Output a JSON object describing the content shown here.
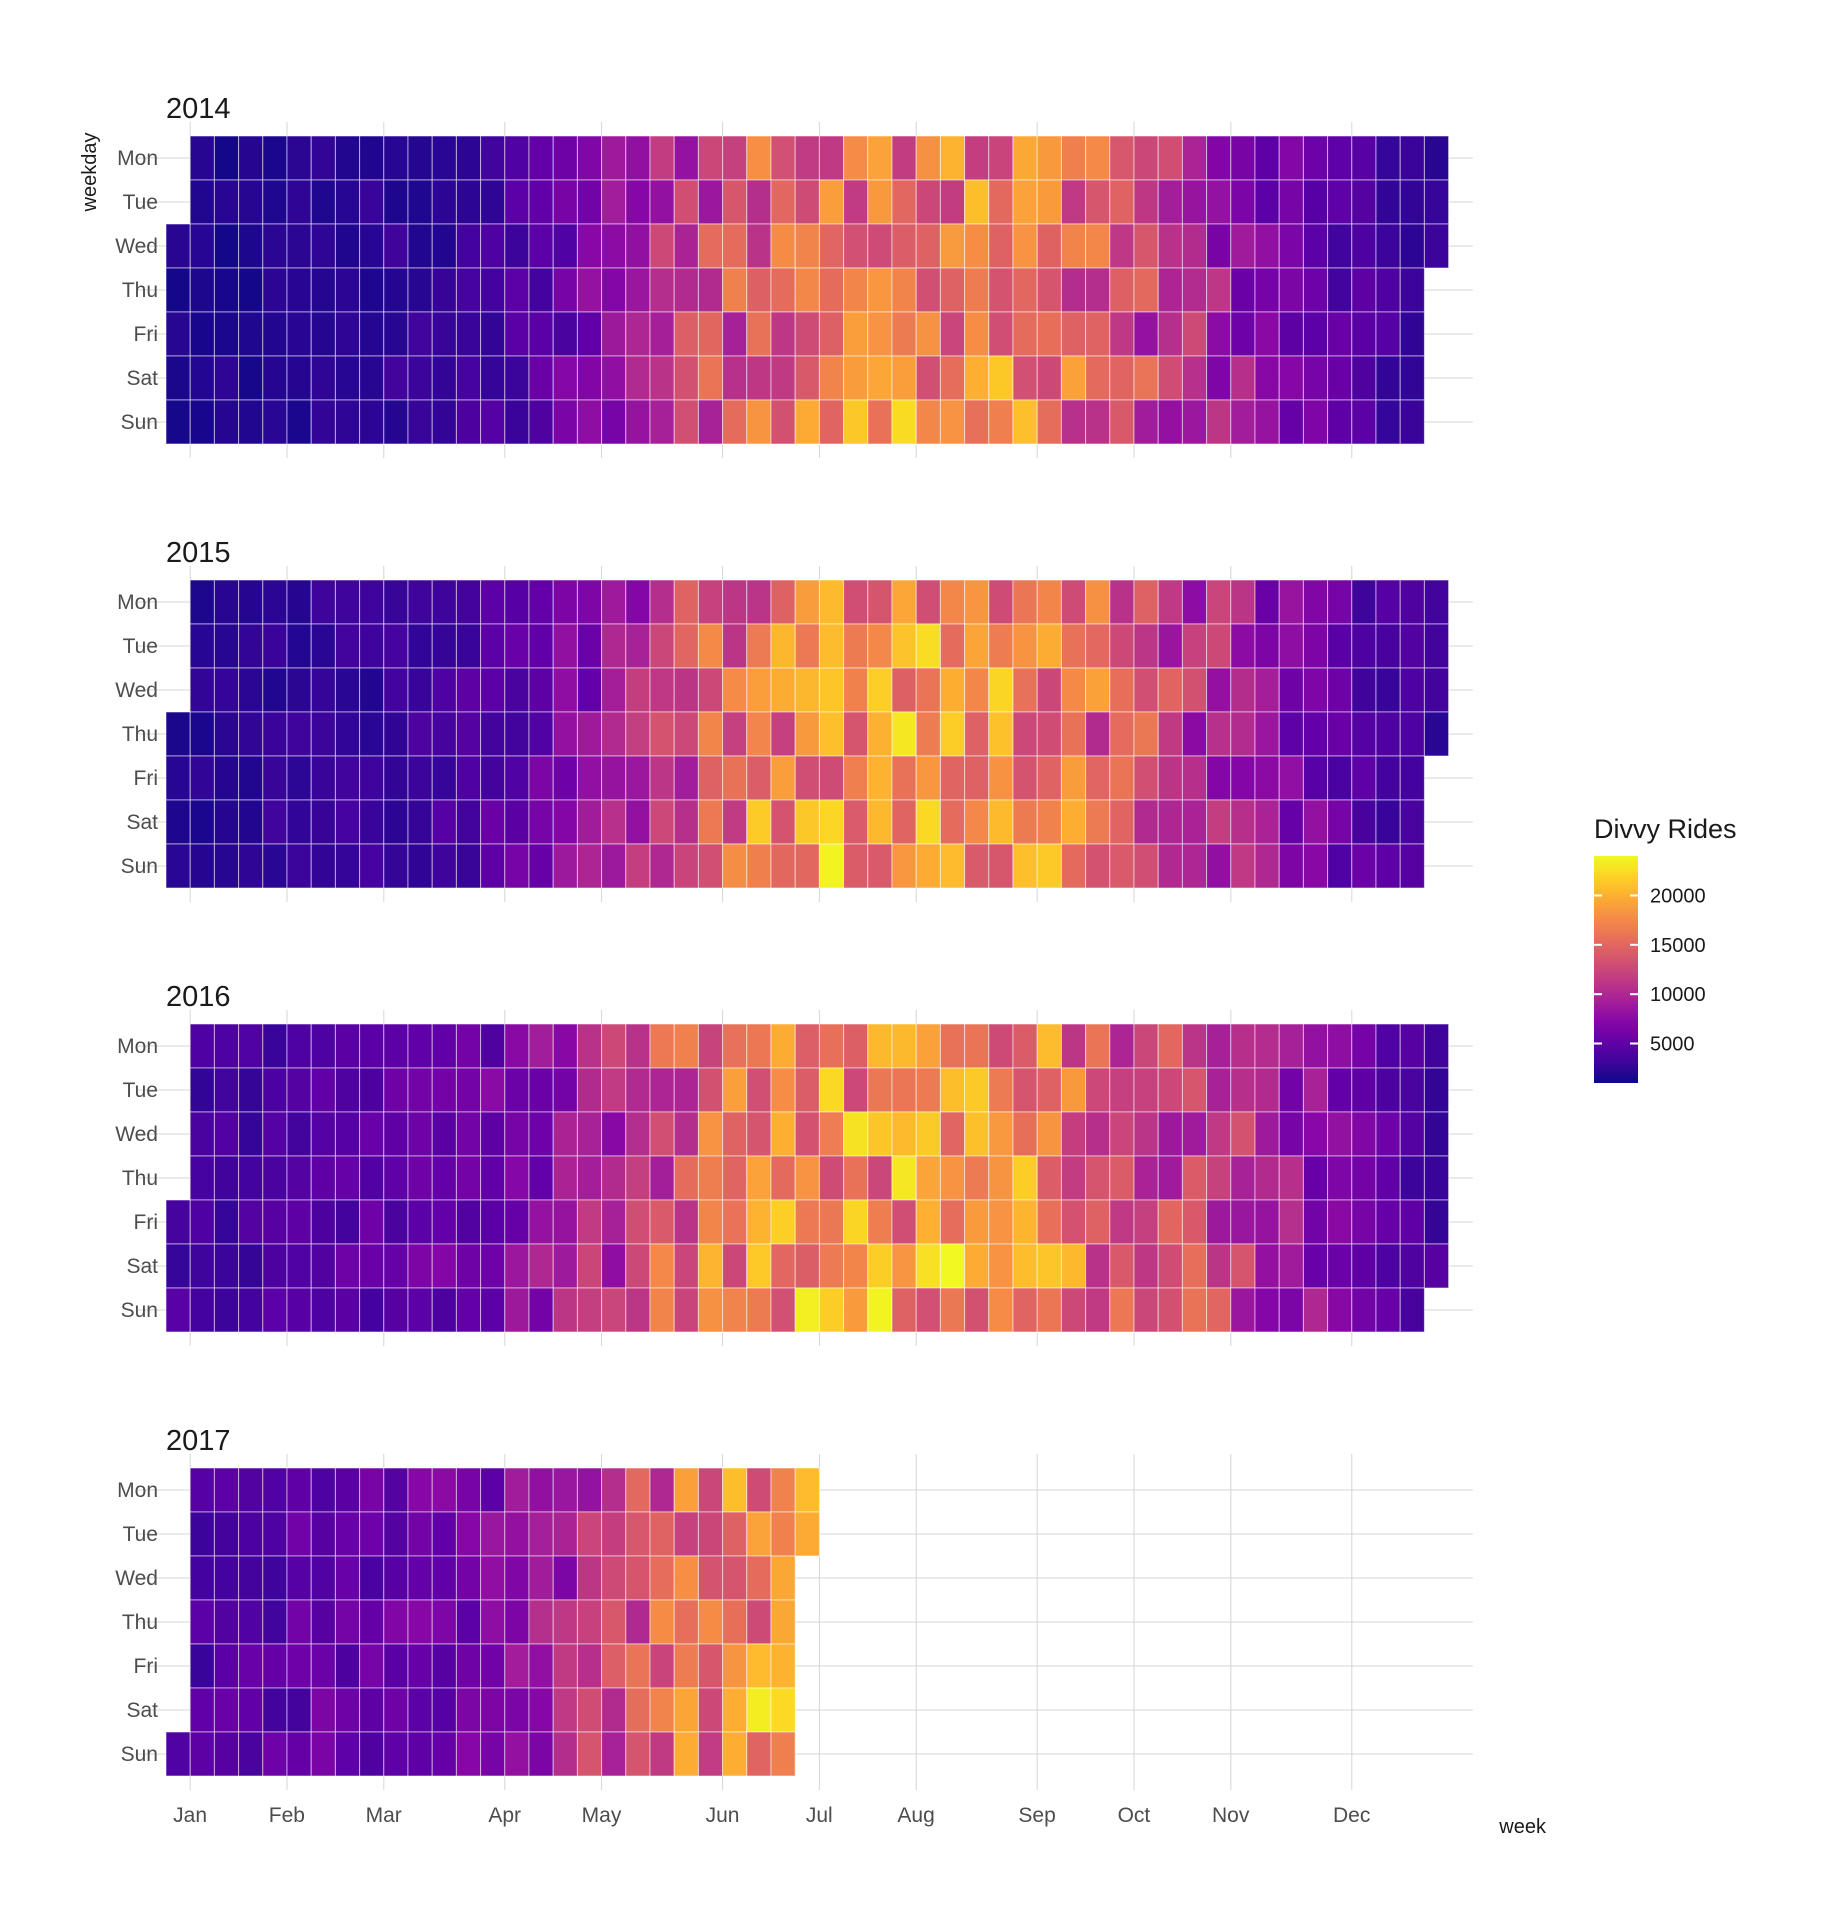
{
  "chart_data": {
    "type": "heatmap",
    "x_axis_title": "week",
    "y_axis_title": "weekday",
    "weekdays": [
      "Mon",
      "Tue",
      "Wed",
      "Thu",
      "Fri",
      "Sat",
      "Sun"
    ],
    "months": [
      "Jan",
      "Feb",
      "Mar",
      "Apr",
      "May",
      "Jun",
      "Jul",
      "Aug",
      "Sep",
      "Oct",
      "Nov",
      "Dec"
    ],
    "legend": {
      "title": "Divvy Rides",
      "ticks": [
        5000,
        10000,
        15000,
        20000
      ],
      "min": 1000,
      "max": 24000,
      "position": "right"
    },
    "colors": [
      "#0d0887",
      "#3e049c",
      "#6300a7",
      "#8707a6",
      "#a62098",
      "#c03a83",
      "#d5546e",
      "#e76f5a",
      "#f58c46",
      "#fdad32",
      "#fcd225",
      "#f0f921"
    ],
    "grid": true,
    "panels": [
      {
        "year": "2014",
        "first_weekday": 2,
        "days": 365,
        "base": [
          1800,
          1800,
          2000,
          2200,
          2400,
          2600,
          3000,
          3800,
          5500,
          7500,
          10000,
          12500,
          14500,
          15500,
          16500,
          16800,
          16800,
          16500,
          15500,
          14000,
          12000,
          10000,
          8000,
          6000,
          4500,
          3500,
          3000
        ]
      },
      {
        "year": "2015",
        "first_weekday": 3,
        "days": 365,
        "base": [
          2200,
          2200,
          2400,
          2600,
          2800,
          3200,
          3800,
          4800,
          6500,
          8500,
          11500,
          14000,
          16000,
          17500,
          18500,
          19000,
          18800,
          18000,
          16500,
          15000,
          13000,
          11000,
          9000,
          7000,
          5000,
          3800,
          3200
        ]
      },
      {
        "year": "2016",
        "first_weekday": 4,
        "days": 366,
        "base": [
          3500,
          3500,
          3800,
          4200,
          4600,
          5000,
          5600,
          6500,
          8500,
          10500,
          13000,
          15000,
          16500,
          17500,
          18000,
          18200,
          18000,
          17500,
          16500,
          15000,
          13500,
          12000,
          10500,
          8500,
          6500,
          4500,
          3500
        ]
      },
      {
        "year": "2017",
        "first_weekday": 6,
        "days": 178,
        "base": [
          4200,
          4200,
          4500,
          5000,
          5400,
          5800,
          6300,
          7200,
          9500,
          11500,
          14000,
          16000,
          17500,
          17500,
          17500,
          17500,
          17500,
          17500,
          17500,
          17500,
          17500,
          17500,
          17500,
          17500,
          17500,
          17500,
          17500
        ]
      }
    ]
  }
}
